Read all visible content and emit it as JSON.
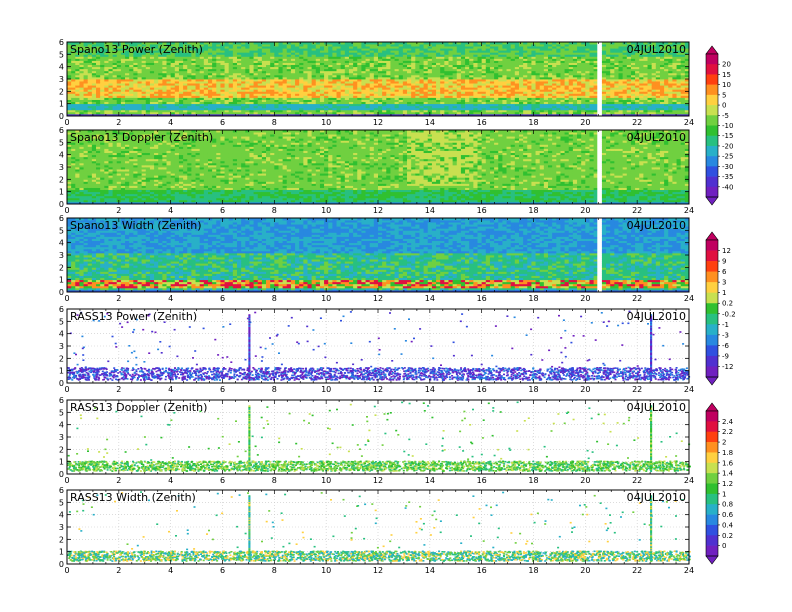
{
  "figure": {
    "date": "04JUL2010"
  },
  "x_ticks": [
    "0",
    "2",
    "4",
    "6",
    "8",
    "10",
    "12",
    "14",
    "16",
    "18",
    "20",
    "22",
    "24"
  ],
  "y_ticks": [
    "0",
    "1",
    "2",
    "3",
    "4",
    "5",
    "6"
  ],
  "colorbars": [
    {
      "labels": [
        "20",
        "15",
        "10",
        "5",
        "0",
        "-5",
        "-10",
        "-15",
        "-20",
        "-25",
        "-30",
        "-35",
        "-40"
      ]
    },
    {
      "labels": [
        "12",
        "9",
        "6",
        "3",
        "1",
        "0.2",
        "-0.2",
        "-1",
        "-3",
        "-6",
        "-9",
        "-12"
      ]
    },
    {
      "labels": [
        "2.4",
        "2.2",
        "2",
        "1.8",
        "1.6",
        "1.4",
        "1.2",
        "1",
        "0.8",
        "0.6",
        "0.4",
        "0.2",
        "0"
      ]
    }
  ],
  "chart_data": [
    {
      "type": "heatmap",
      "title": "Spano13 Power (Zenith)",
      "date": "04JUL2010",
      "xlim": [
        0,
        24
      ],
      "ylim": [
        0,
        6
      ],
      "fill": "dense",
      "gap_x": 20.5,
      "base": "green",
      "low_band": [
        0.5,
        1.0
      ],
      "bright_band": [
        1.5,
        3.0
      ]
    },
    {
      "type": "heatmap",
      "title": "Spano13 Doppler (Zenith)",
      "date": "04JUL2010",
      "xlim": [
        0,
        24
      ],
      "ylim": [
        0,
        6
      ],
      "fill": "dense",
      "gap_x": 20.5,
      "base": "green"
    },
    {
      "type": "heatmap",
      "title": "Spano13 Width (Zenith)",
      "date": "04JUL2010",
      "xlim": [
        0,
        24
      ],
      "ylim": [
        0,
        6
      ],
      "fill": "dense",
      "gap_x": 20.5,
      "base": "cyan",
      "hot_band": [
        0.4,
        1.0
      ]
    },
    {
      "type": "scatter",
      "title": "RASS13 Power (Zenith)",
      "date": "04JUL2010",
      "xlim": [
        0,
        24
      ],
      "ylim": [
        0,
        6
      ],
      "band": [
        0.3,
        1.3
      ],
      "spikes": [
        7.0,
        22.5
      ]
    },
    {
      "type": "scatter",
      "title": "RASS13 Doppler (Zenith)",
      "date": "04JUL2010",
      "xlim": [
        0,
        24
      ],
      "ylim": [
        0,
        6
      ],
      "band": [
        0.3,
        1.1
      ],
      "spikes": [
        7.0,
        22.5
      ]
    },
    {
      "type": "scatter",
      "title": "RASS13 Width (Zenith)",
      "date": "04JUL2010",
      "xlim": [
        0,
        24
      ],
      "ylim": [
        0,
        6
      ],
      "band": [
        0.3,
        1.1
      ],
      "spikes": [
        7.0,
        22.5
      ]
    }
  ],
  "palette": {
    "spectrum": [
      "#c00060",
      "#e01040",
      "#ff4010",
      "#ff9020",
      "#ffd040",
      "#c8e050",
      "#70d040",
      "#30c030",
      "#28c080",
      "#28b0c8",
      "#2888e0",
      "#3050e0",
      "#5030d0",
      "#7020c0"
    ],
    "frame": "#000000",
    "gap": "#ffffff"
  }
}
